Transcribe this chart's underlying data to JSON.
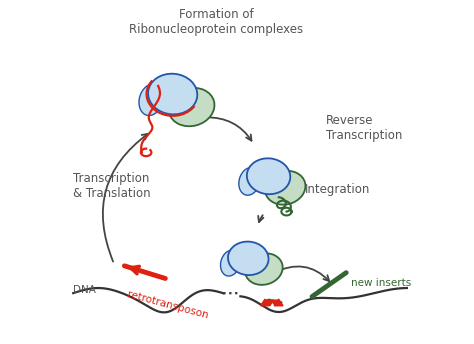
{
  "bg_color": "#ffffff",
  "text_color": "#555555",
  "title_formation": "Formation of\nRibonucleoprotein complexes",
  "label_reverse": "Reverse\nTranscription",
  "label_transcription": "Transcription\n& Translation",
  "label_integration": "Integration",
  "label_dna": "DNA",
  "label_retrotransposon": "retrotransposon",
  "label_new_inserts": "new inserts",
  "blue_dark": "#2255aa",
  "blue_light": "#c5ddf0",
  "green_dark": "#336633",
  "green_light": "#c5ddc5",
  "red_color": "#dd2211",
  "arrow_color": "#444444",
  "dna_color": "#333333",
  "figsize": [
    4.74,
    3.44
  ],
  "dpi": 100
}
